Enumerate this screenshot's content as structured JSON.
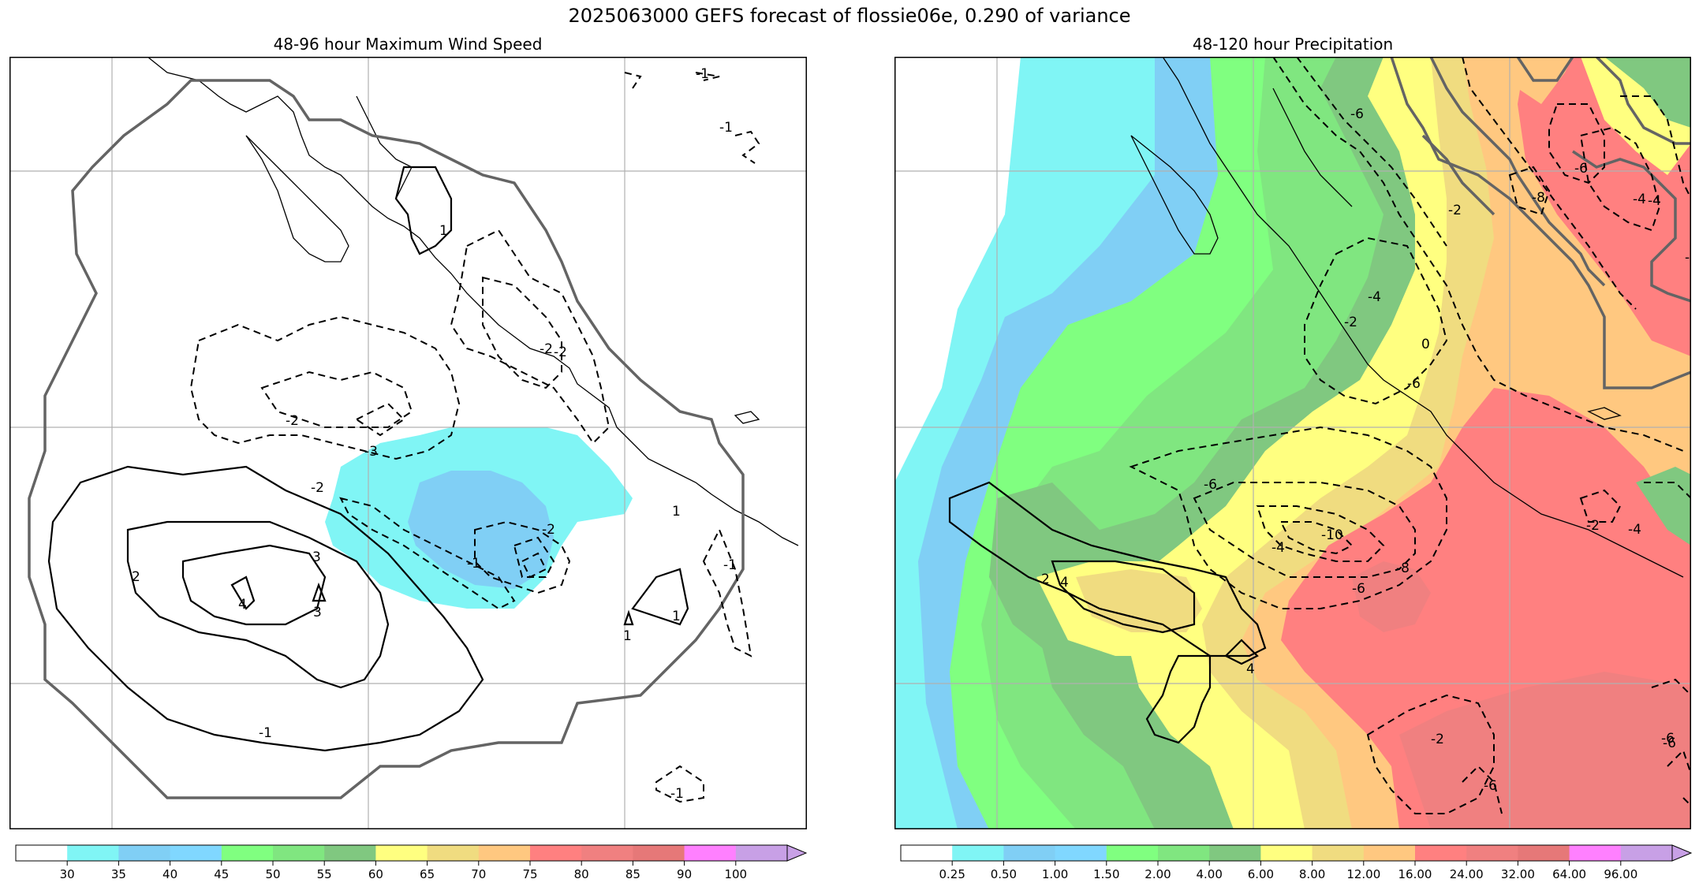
{
  "title": "2025063000 GEFS forecast of flossie06e, 0.290 of variance",
  "left_panel": {
    "title": "48-96 hour Maximum Wind Speed",
    "colorbar": {
      "ticks": [
        "30",
        "35",
        "40",
        "45",
        "50",
        "55",
        "60",
        "65",
        "70",
        "75",
        "80",
        "85",
        "90",
        "100"
      ],
      "colors": [
        "#ffffff",
        "#80f5f5",
        "#80cff5",
        "#80d7ff",
        "#80ff80",
        "#80e680",
        "#80c880",
        "#ffff80",
        "#f0dc80",
        "#ffc880",
        "#ff8080",
        "#f08080",
        "#e67878",
        "#ff80ff",
        "#c8a0e6"
      ]
    },
    "contour_labels": [
      "-1",
      "-1",
      "1",
      "-2",
      "-2",
      "-3",
      "-2",
      "-2",
      "-1",
      "2",
      "3",
      "4",
      "3",
      "1",
      "1",
      "1",
      "-1",
      "-1",
      "-1",
      "-2"
    ]
  },
  "right_panel": {
    "title": "48-120 hour Precipitation",
    "colorbar": {
      "ticks": [
        "0.25",
        "0.50",
        "1.00",
        "1.50",
        "2.00",
        "4.00",
        "6.00",
        "8.00",
        "12.00",
        "16.00",
        "24.00",
        "32.00",
        "64.00",
        "96.00"
      ],
      "colors": [
        "#ffffff",
        "#80f5f5",
        "#80cff5",
        "#80d7ff",
        "#80ff80",
        "#80e680",
        "#80c880",
        "#ffff80",
        "#f0dc80",
        "#ffc880",
        "#ff8080",
        "#f08080",
        "#e67878",
        "#ff80ff",
        "#c8a0e6"
      ]
    },
    "contour_labels": [
      "-6",
      "-6",
      "-8",
      "-2",
      "-6",
      "-4",
      "-2",
      "-4",
      "0",
      "-6",
      "-4",
      "-10",
      "-8",
      "-6",
      "2",
      "4",
      "4",
      "-6",
      "-4",
      "-2",
      "-4",
      "-6",
      "-6",
      "-2",
      "-6"
    ]
  }
}
